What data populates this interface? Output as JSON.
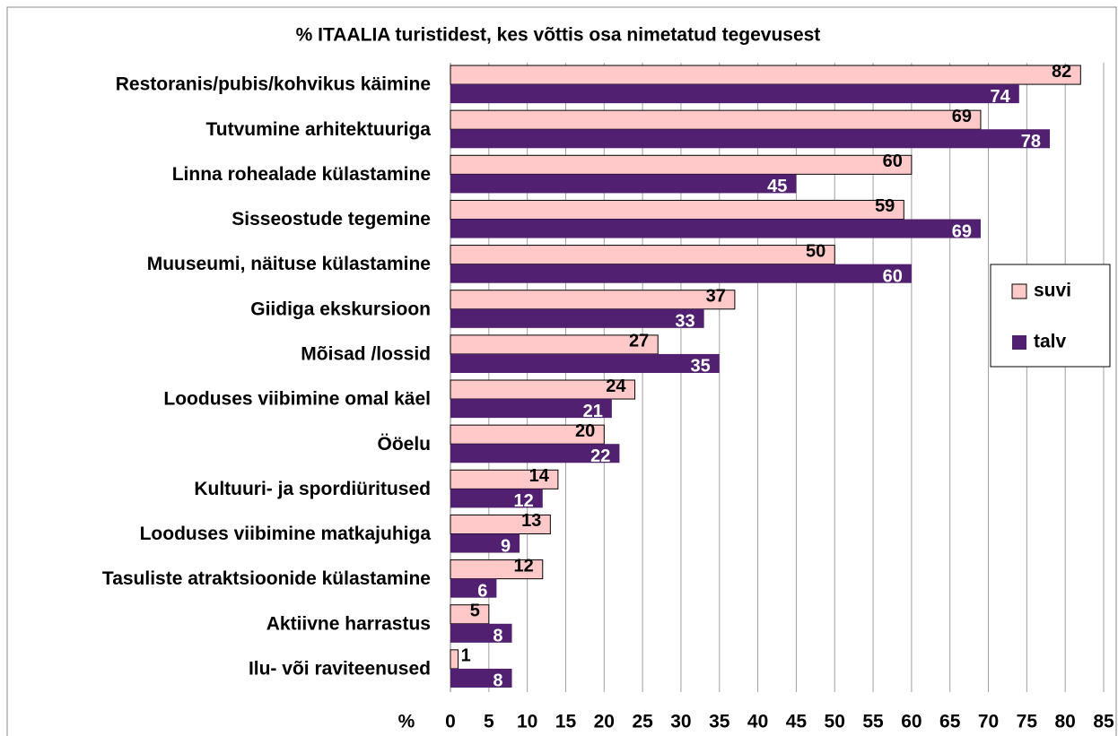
{
  "chart_data": {
    "type": "bar",
    "orientation": "horizontal",
    "title": "% ITAALIA turistidest, kes võttis osa nimetatud tegevusest",
    "x_label": "%",
    "categories": [
      "Restoranis/pubis/kohvikus käimine",
      "Tutvumine arhitektuuriga",
      "Linna rohealade külastamine",
      "Sisseostude tegemine",
      "Muuseumi, näituse külastamine",
      "Giidiga ekskursioon",
      "Mõisad /lossid",
      "Looduses viibimine omal käel",
      "Ööelu",
      "Kultuuri- ja spordiüritused",
      "Looduses viibimine matkajuhiga",
      "Tasuliste atraktsioonide külastamine",
      "Aktiivne harrastus",
      "Ilu- või raviteenused"
    ],
    "series": [
      {
        "name": "suvi",
        "color": "#ffc9c9",
        "values": [
          82,
          69,
          60,
          59,
          50,
          37,
          27,
          24,
          20,
          14,
          13,
          12,
          5,
          1
        ]
      },
      {
        "name": "talv",
        "color": "#512070",
        "values": [
          74,
          78,
          45,
          69,
          60,
          33,
          35,
          21,
          22,
          12,
          9,
          6,
          8,
          8
        ]
      }
    ],
    "xlim": [
      0,
      85
    ],
    "xticks": [
      0,
      5,
      10,
      15,
      20,
      25,
      30,
      35,
      40,
      45,
      50,
      55,
      60,
      65,
      70,
      75,
      80,
      85
    ],
    "grid": true,
    "legend": "right"
  }
}
